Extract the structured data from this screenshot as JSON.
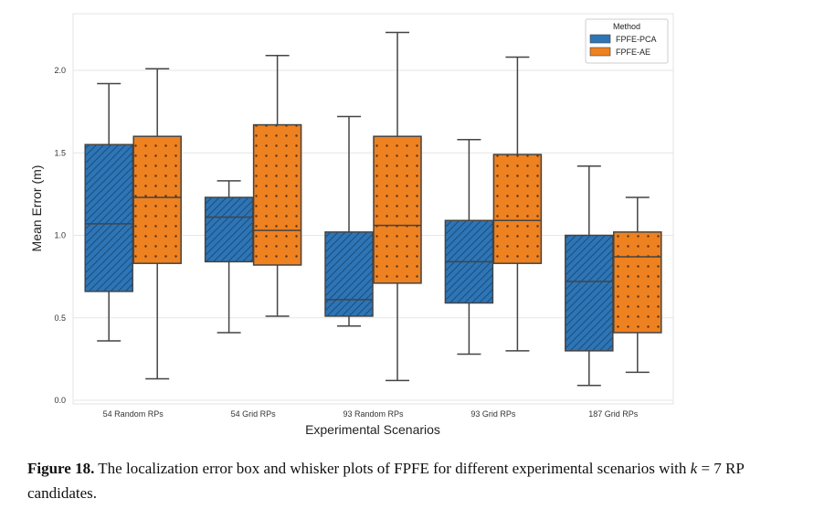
{
  "chart_data": {
    "type": "box",
    "xlabel": "Experimental Scenarios",
    "ylabel": "Mean Error (m)",
    "ylim": [
      0.0,
      2.3
    ],
    "yticks": [
      "0.0",
      "0.5",
      "1.0",
      "1.5",
      "2.0"
    ],
    "grid": true,
    "legend": {
      "title": "Method",
      "placement": "top-right"
    },
    "categories": [
      "54 Random RPs",
      "54 Grid RPs",
      "93 Random RPs",
      "93 Grid RPs",
      "187 Grid RPs"
    ],
    "series": [
      {
        "name": "FPFE-PCA",
        "color": "#2e75b6",
        "pattern": "diagonal-hatch",
        "boxes": [
          {
            "whislo": 0.36,
            "q1": 0.66,
            "med": 1.07,
            "q3": 1.55,
            "whishi": 1.92
          },
          {
            "whislo": 0.41,
            "q1": 0.84,
            "med": 1.11,
            "q3": 1.23,
            "whishi": 1.33
          },
          {
            "whislo": 0.45,
            "q1": 0.51,
            "med": 0.61,
            "q3": 1.02,
            "whishi": 1.72
          },
          {
            "whislo": 0.28,
            "q1": 0.59,
            "med": 0.84,
            "q3": 1.09,
            "whishi": 1.58
          },
          {
            "whislo": 0.09,
            "q1": 0.3,
            "med": 0.72,
            "q3": 1.0,
            "whishi": 1.42
          }
        ]
      },
      {
        "name": "FPFE-AE",
        "color": "#ee8120",
        "pattern": "dots",
        "boxes": [
          {
            "whislo": 0.13,
            "q1": 0.83,
            "med": 1.23,
            "q3": 1.6,
            "whishi": 2.01
          },
          {
            "whislo": 0.51,
            "q1": 0.82,
            "med": 1.03,
            "q3": 1.67,
            "whishi": 2.09
          },
          {
            "whislo": 0.12,
            "q1": 0.71,
            "med": 1.06,
            "q3": 1.6,
            "whishi": 2.23
          },
          {
            "whislo": 0.3,
            "q1": 0.83,
            "med": 1.09,
            "q3": 1.49,
            "whishi": 2.08
          },
          {
            "whislo": 0.17,
            "q1": 0.41,
            "med": 0.87,
            "q3": 1.02,
            "whishi": 1.23
          }
        ]
      }
    ]
  },
  "caption": {
    "label": "Figure 18.",
    "text_before_k": " The localization error box and whisker plots of FPFE for different experimental scenarios with ",
    "k": "k",
    "text_after_k": " = 7 RP candidates."
  }
}
